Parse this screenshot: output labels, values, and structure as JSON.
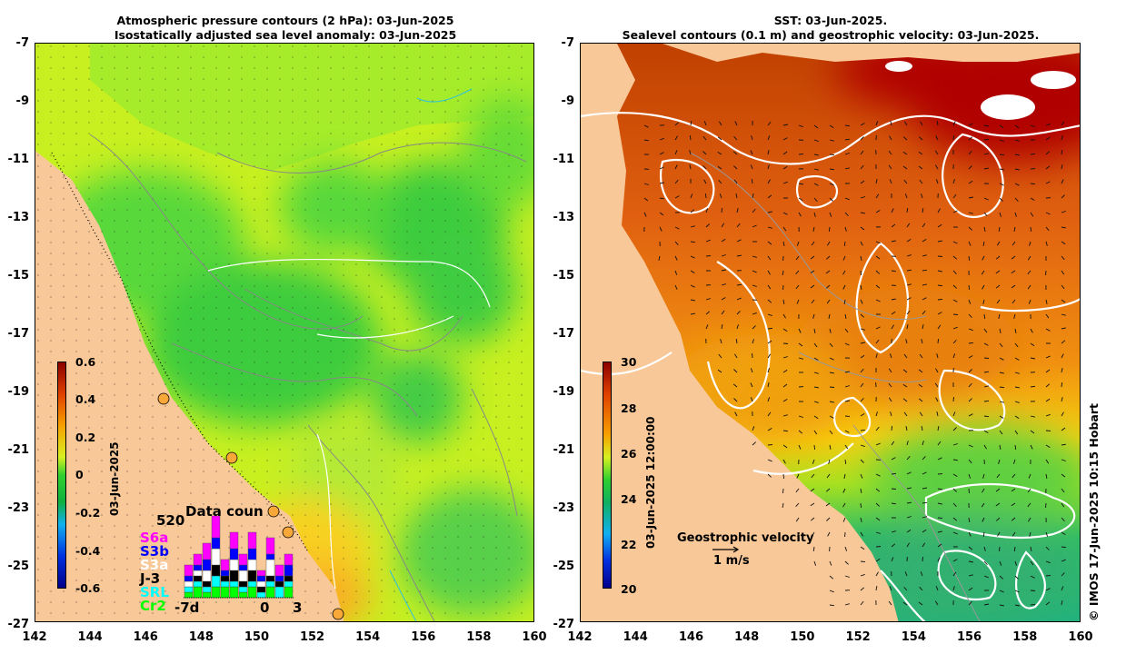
{
  "left_panel": {
    "title_line1": "Atmospheric pressure contours (2 hPa): 03-Jun-2025",
    "title_line2": "Isostatically adjusted sea level anomaly: 03-Jun-2025",
    "colorbar": {
      "labels": [
        "0.6",
        "0.4",
        "0.2",
        "0",
        "-0.2",
        "-0.4",
        "-0.6"
      ],
      "date": "03-Jun-2025"
    },
    "data_count": {
      "title": "Data coun",
      "count": "520",
      "satellites": [
        {
          "name": "S6a",
          "color": "#ff00ff"
        },
        {
          "name": "S3b",
          "color": "#0000ff"
        },
        {
          "name": "S3a",
          "color": "#ffffff"
        },
        {
          "name": "J-3",
          "color": "#000000"
        },
        {
          "name": "SRL",
          "color": "#00ffff"
        },
        {
          "name": "Cr2",
          "color": "#00ff00"
        }
      ],
      "x_labels": [
        "-7d",
        "0",
        "3"
      ],
      "bars": [
        [
          2,
          1,
          1,
          0,
          1,
          1
        ],
        [
          2,
          1,
          1,
          1,
          1,
          2
        ],
        [
          3,
          2,
          2,
          1,
          1,
          1
        ],
        [
          4,
          2,
          3,
          2,
          2,
          2
        ],
        [
          2,
          1,
          0,
          1,
          1,
          2
        ],
        [
          3,
          2,
          2,
          2,
          1,
          2
        ],
        [
          2,
          1,
          2,
          1,
          1,
          1
        ],
        [
          3,
          2,
          2,
          2,
          1,
          2
        ],
        [
          1,
          1,
          1,
          1,
          1,
          0
        ],
        [
          3,
          1,
          3,
          1,
          1,
          2
        ],
        [
          2,
          1,
          0,
          1,
          2,
          0
        ],
        [
          2,
          2,
          0,
          1,
          1,
          2
        ]
      ]
    }
  },
  "right_panel": {
    "title_line1": "SST: 03-Jun-2025.",
    "title_line2": "Sealevel contours (0.1 m) and geostrophic velocity: 03-Jun-2025.",
    "colorbar": {
      "labels": [
        "30",
        "28",
        "26",
        "24",
        "22",
        "20"
      ],
      "date": "03-Jun-2025 12:00:00"
    },
    "velocity_legend": {
      "label": "Geostrophic velocity",
      "scale": "1 m/s"
    }
  },
  "axes": {
    "y_labels": [
      "-7",
      "-9",
      "-11",
      "-13",
      "-15",
      "-17",
      "-19",
      "-21",
      "-23",
      "-25",
      "-27"
    ],
    "x_labels": [
      "142",
      "144",
      "146",
      "148",
      "150",
      "152",
      "154",
      "156",
      "158",
      "160"
    ]
  },
  "credit": "© IMOS 17-Jun-2025 10:15 Hobart"
}
